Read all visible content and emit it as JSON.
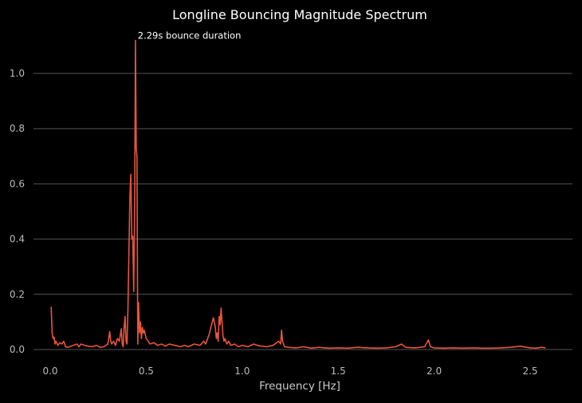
{
  "chart_data": {
    "type": "line",
    "title": "Longline Bouncing Magnitude Spectrum",
    "xlabel": "Frequency [Hz]",
    "ylabel": "",
    "xlim": [
      -0.1,
      2.72
    ],
    "ylim": [
      -0.05,
      1.15
    ],
    "xticks": [
      0.0,
      0.5,
      1.0,
      1.5,
      2.0,
      2.5
    ],
    "xtick_labels": [
      "0.0",
      "0.5",
      "1.0",
      "1.5",
      "2.0",
      "2.5"
    ],
    "yticks": [
      0.0,
      0.2,
      0.4,
      0.6,
      0.8,
      1.0
    ],
    "ytick_labels": [
      "0.0",
      "0.2",
      "0.4",
      "0.6",
      "0.8",
      "1.0"
    ],
    "grid": "horizontal",
    "colors": {
      "line": "#e8553a",
      "grid": "#555555",
      "text": "#bbbbbb",
      "title": "#ffffff"
    },
    "annotation": {
      "text": "2.29s bounce duration",
      "x": 0.46,
      "y": 1.12
    },
    "series": [
      {
        "name": "magnitude",
        "x": [
          0.005,
          0.01,
          0.015,
          0.02,
          0.025,
          0.03,
          0.04,
          0.05,
          0.06,
          0.07,
          0.08,
          0.09,
          0.1,
          0.12,
          0.14,
          0.15,
          0.16,
          0.18,
          0.2,
          0.22,
          0.24,
          0.26,
          0.28,
          0.3,
          0.305,
          0.31,
          0.315,
          0.32,
          0.33,
          0.34,
          0.35,
          0.36,
          0.37,
          0.375,
          0.38,
          0.385,
          0.39,
          0.395,
          0.4,
          0.405,
          0.41,
          0.415,
          0.42,
          0.425,
          0.43,
          0.435,
          0.44,
          0.444,
          0.448,
          0.452,
          0.456,
          0.46,
          0.465,
          0.47,
          0.475,
          0.48,
          0.485,
          0.49,
          0.5,
          0.51,
          0.52,
          0.54,
          0.56,
          0.58,
          0.6,
          0.62,
          0.65,
          0.68,
          0.7,
          0.72,
          0.75,
          0.78,
          0.8,
          0.81,
          0.82,
          0.83,
          0.84,
          0.85,
          0.86,
          0.865,
          0.87,
          0.875,
          0.88,
          0.885,
          0.89,
          0.895,
          0.9,
          0.905,
          0.91,
          0.92,
          0.93,
          0.94,
          0.96,
          0.98,
          1.0,
          1.03,
          1.06,
          1.08,
          1.1,
          1.13,
          1.16,
          1.18,
          1.19,
          1.2,
          1.205,
          1.21,
          1.215,
          1.22,
          1.24,
          1.28,
          1.32,
          1.36,
          1.4,
          1.45,
          1.5,
          1.55,
          1.6,
          1.65,
          1.7,
          1.75,
          1.8,
          1.83,
          1.85,
          1.9,
          1.95,
          1.97,
          1.98,
          2.0,
          2.05,
          2.1,
          2.15,
          2.2,
          2.25,
          2.3,
          2.35,
          2.4,
          2.45,
          2.48,
          2.5,
          2.53,
          2.56,
          2.58
        ],
        "y": [
          0.155,
          0.06,
          0.04,
          0.045,
          0.02,
          0.03,
          0.015,
          0.025,
          0.02,
          0.03,
          0.01,
          0.008,
          0.01,
          0.015,
          0.02,
          0.01,
          0.02,
          0.015,
          0.012,
          0.01,
          0.015,
          0.008,
          0.01,
          0.02,
          0.04,
          0.065,
          0.03,
          0.02,
          0.03,
          0.015,
          0.04,
          0.03,
          0.075,
          0.02,
          0.01,
          0.08,
          0.12,
          0.03,
          0.02,
          0.15,
          0.35,
          0.55,
          0.635,
          0.4,
          0.41,
          0.21,
          0.55,
          1.12,
          0.73,
          0.7,
          0.02,
          0.17,
          0.06,
          0.1,
          0.04,
          0.08,
          0.06,
          0.07,
          0.04,
          0.03,
          0.02,
          0.025,
          0.015,
          0.02,
          0.012,
          0.02,
          0.015,
          0.01,
          0.015,
          0.01,
          0.02,
          0.015,
          0.03,
          0.02,
          0.04,
          0.06,
          0.09,
          0.115,
          0.08,
          0.04,
          0.06,
          0.03,
          0.12,
          0.09,
          0.15,
          0.1,
          0.05,
          0.03,
          0.04,
          0.02,
          0.03,
          0.015,
          0.02,
          0.01,
          0.015,
          0.01,
          0.02,
          0.015,
          0.012,
          0.01,
          0.015,
          0.025,
          0.03,
          0.02,
          0.07,
          0.03,
          0.02,
          0.01,
          0.008,
          0.006,
          0.01,
          0.005,
          0.008,
          0.005,
          0.006,
          0.005,
          0.008,
          0.006,
          0.005,
          0.006,
          0.01,
          0.02,
          0.008,
          0.006,
          0.01,
          0.035,
          0.01,
          0.006,
          0.005,
          0.006,
          0.005,
          0.006,
          0.005,
          0.005,
          0.006,
          0.008,
          0.012,
          0.008,
          0.006,
          0.005,
          0.008,
          0.006
        ]
      }
    ]
  }
}
